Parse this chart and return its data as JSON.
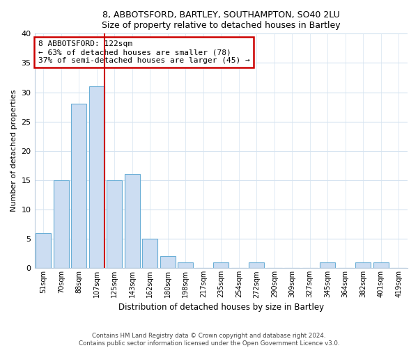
{
  "title1": "8, ABBOTSFORD, BARTLEY, SOUTHAMPTON, SO40 2LU",
  "title2": "Size of property relative to detached houses in Bartley",
  "xlabel": "Distribution of detached houses by size in Bartley",
  "ylabel": "Number of detached properties",
  "categories": [
    "51sqm",
    "70sqm",
    "88sqm",
    "107sqm",
    "125sqm",
    "143sqm",
    "162sqm",
    "180sqm",
    "198sqm",
    "217sqm",
    "235sqm",
    "254sqm",
    "272sqm",
    "290sqm",
    "309sqm",
    "327sqm",
    "345sqm",
    "364sqm",
    "382sqm",
    "401sqm",
    "419sqm"
  ],
  "values": [
    6,
    15,
    28,
    31,
    15,
    16,
    5,
    2,
    1,
    0,
    1,
    0,
    1,
    0,
    0,
    0,
    1,
    0,
    1,
    1,
    0
  ],
  "bar_color": "#ccddf2",
  "bar_edge_color": "#6aaed6",
  "marker_line_color": "#cc0000",
  "annotation_line1": "8 ABBOTSFORD: 122sqm",
  "annotation_line2": "← 63% of detached houses are smaller (78)",
  "annotation_line3": "37% of semi-detached houses are larger (45) →",
  "annotation_box_edge": "#cc0000",
  "ylim": [
    0,
    40
  ],
  "yticks": [
    0,
    5,
    10,
    15,
    20,
    25,
    30,
    35,
    40
  ],
  "grid_color": "#d5e3f0",
  "footer1": "Contains HM Land Registry data © Crown copyright and database right 2024.",
  "footer2": "Contains public sector information licensed under the Open Government Licence v3.0."
}
